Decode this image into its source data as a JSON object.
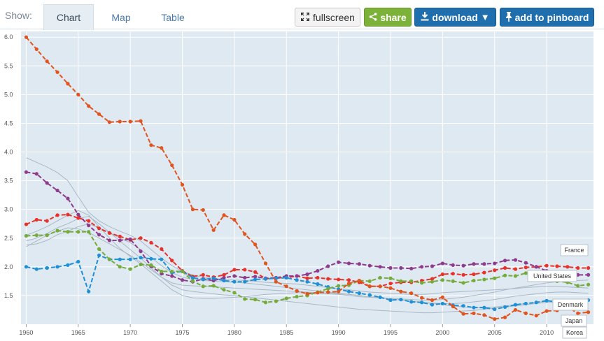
{
  "toolbar": {
    "show_label": "Show:",
    "tabs": [
      {
        "label": "Chart",
        "active": true
      },
      {
        "label": "Map",
        "active": false
      },
      {
        "label": "Table",
        "active": false
      }
    ],
    "fullscreen_label": "fullscreen",
    "share_label": "share",
    "download_label": "download",
    "pinboard_label": "add to pinboard",
    "icons": {
      "fullscreen": "fullscreen-icon",
      "share": "share-icon",
      "download": "download-icon",
      "dropdown": "caret-down-icon",
      "pin": "pin-icon"
    },
    "colors": {
      "share": "#7db23a",
      "download": "#1f6fae",
      "pinboard": "#1f6fae"
    }
  },
  "chart_data": {
    "type": "line",
    "title": "",
    "xlabel": "",
    "ylabel": "",
    "xlim": [
      1959.5,
      2014.5
    ],
    "ylim": [
      1.0,
      6.1
    ],
    "xticks": [
      1960,
      1965,
      1970,
      1975,
      1980,
      1985,
      1990,
      1995,
      2000,
      2005,
      2010
    ],
    "yticks": [
      1.5,
      2.0,
      2.5,
      3.0,
      3.5,
      4.0,
      4.5,
      5.0,
      5.5,
      6.0
    ],
    "ytick_labels": [
      "1.5",
      "2.0",
      "2.5",
      "3.0",
      "3.5",
      "4.0",
      "4.5",
      "5.0",
      "5.5",
      "6.0"
    ],
    "grid": true,
    "background": "#dfe9f1",
    "highlighted_series": [
      {
        "name": "France",
        "color": "#e8312b",
        "x_start": 1960,
        "values": [
          2.74,
          2.82,
          2.8,
          2.9,
          2.91,
          2.85,
          2.8,
          2.67,
          2.59,
          2.53,
          2.47,
          2.5,
          2.42,
          2.31,
          2.11,
          1.93,
          1.83,
          1.86,
          1.82,
          1.86,
          1.95,
          1.95,
          1.91,
          1.79,
          1.81,
          1.81,
          1.84,
          1.8,
          1.81,
          1.79,
          1.78,
          1.77,
          1.73,
          1.66,
          1.66,
          1.71,
          1.73,
          1.73,
          1.76,
          1.79,
          1.87,
          1.88,
          1.86,
          1.87,
          1.9,
          1.94,
          1.98,
          1.96,
          1.99,
          2.0,
          2.02,
          2.01,
          2.0,
          1.98,
          1.98
        ]
      },
      {
        "name": "United States",
        "color": "#8e3b8c",
        "x_start": 1960,
        "values": [
          3.65,
          3.62,
          3.46,
          3.33,
          3.19,
          2.91,
          2.72,
          2.56,
          2.46,
          2.46,
          2.48,
          2.27,
          2.01,
          1.88,
          1.84,
          1.77,
          1.74,
          1.79,
          1.76,
          1.81,
          1.84,
          1.81,
          1.83,
          1.8,
          1.81,
          1.84,
          1.84,
          1.87,
          1.93,
          2.01,
          2.08,
          2.06,
          2.05,
          2.02,
          2.0,
          1.98,
          1.98,
          1.97,
          2.0,
          2.01,
          2.06,
          2.03,
          2.02,
          2.05,
          2.05,
          2.06,
          2.11,
          2.12,
          2.07,
          2.0,
          1.93,
          1.89,
          1.88,
          1.86,
          1.86
        ]
      },
      {
        "name": "Denmark",
        "color": "#1e90d6",
        "x_start": 1960,
        "values": [
          2.0,
          1.96,
          1.98,
          2.0,
          2.03,
          2.09,
          1.57,
          2.2,
          2.13,
          2.13,
          2.13,
          2.16,
          2.14,
          2.13,
          1.9,
          1.92,
          1.81,
          1.78,
          1.8,
          1.76,
          1.74,
          1.74,
          1.78,
          1.79,
          1.8,
          1.81,
          1.77,
          1.74,
          1.7,
          1.65,
          1.61,
          1.57,
          1.54,
          1.51,
          1.47,
          1.42,
          1.43,
          1.39,
          1.38,
          1.34,
          1.36,
          1.33,
          1.32,
          1.29,
          1.29,
          1.26,
          1.3,
          1.34,
          1.36,
          1.38,
          1.41,
          1.39,
          1.37,
          1.41,
          1.42
        ]
      },
      {
        "name": "Japan",
        "color": "#75ab3a",
        "x_start": 1960,
        "values": [
          2.54,
          2.55,
          2.55,
          2.63,
          2.61,
          2.61,
          2.61,
          2.31,
          2.13,
          2.0,
          1.96,
          2.04,
          2.03,
          1.92,
          1.92,
          1.92,
          1.75,
          1.66,
          1.67,
          1.6,
          1.55,
          1.44,
          1.43,
          1.38,
          1.4,
          1.45,
          1.48,
          1.5,
          1.56,
          1.62,
          1.67,
          1.68,
          1.76,
          1.75,
          1.81,
          1.8,
          1.75,
          1.75,
          1.72,
          1.74,
          1.77,
          1.75,
          1.72,
          1.76,
          1.78,
          1.8,
          1.85,
          1.84,
          1.89,
          1.84,
          1.87,
          1.75,
          1.73,
          1.67,
          1.69
        ]
      },
      {
        "name": "Korea",
        "color": "#e0551f",
        "x_start": 1960,
        "values": [
          6.0,
          5.79,
          5.58,
          5.39,
          5.19,
          5.0,
          4.8,
          4.66,
          4.52,
          4.53,
          4.53,
          4.54,
          4.12,
          4.07,
          3.77,
          3.43,
          3.0,
          2.99,
          2.64,
          2.9,
          2.82,
          2.57,
          2.39,
          2.06,
          1.74,
          1.66,
          1.58,
          1.53,
          1.55,
          1.56,
          1.57,
          1.71,
          1.76,
          1.66,
          1.66,
          1.63,
          1.57,
          1.54,
          1.46,
          1.42,
          1.47,
          1.31,
          1.18,
          1.19,
          1.16,
          1.09,
          1.12,
          1.25,
          1.19,
          1.15,
          1.23,
          1.24,
          1.3,
          1.19,
          1.21
        ]
      }
    ],
    "background_series": [
      {
        "color": "#a9b8c6",
        "x_start": 1960,
        "values": [
          3.9,
          3.82,
          3.74,
          3.64,
          3.5,
          3.22,
          2.95,
          2.8,
          2.7,
          2.62,
          2.55,
          2.45,
          2.3,
          2.15,
          2.02,
          1.92,
          1.86,
          1.82,
          1.8,
          1.78,
          1.77,
          1.76,
          1.75,
          1.73,
          1.72,
          1.71,
          1.7,
          1.68,
          1.66,
          1.64,
          1.62,
          1.6,
          1.58,
          1.56,
          1.55,
          1.54,
          1.53,
          1.52,
          1.52,
          1.53,
          1.55,
          1.56,
          1.57,
          1.58,
          1.59,
          1.6,
          1.61,
          1.62,
          1.64,
          1.65,
          1.66,
          1.66,
          1.65,
          1.64,
          1.63
        ]
      },
      {
        "color": "#a9b8c6",
        "x_start": 1960,
        "values": [
          2.38,
          2.4,
          2.46,
          2.56,
          2.62,
          2.7,
          2.75,
          2.68,
          2.6,
          2.5,
          2.42,
          2.3,
          2.16,
          2.02,
          1.9,
          1.82,
          1.78,
          1.76,
          1.75,
          1.74,
          1.73,
          1.72,
          1.7,
          1.68,
          1.66,
          1.64,
          1.62,
          1.6,
          1.58,
          1.56,
          1.54,
          1.52,
          1.5,
          1.48,
          1.46,
          1.44,
          1.42,
          1.4,
          1.38,
          1.37,
          1.36,
          1.36,
          1.37,
          1.39,
          1.41,
          1.43,
          1.46,
          1.49,
          1.51,
          1.53,
          1.55,
          1.56,
          1.56,
          1.55,
          1.54
        ]
      },
      {
        "color": "#a9b8c6",
        "x_start": 1960,
        "values": [
          2.45,
          2.5,
          2.58,
          2.68,
          2.75,
          2.84,
          2.88,
          2.75,
          2.6,
          2.45,
          2.3,
          2.15,
          1.98,
          1.82,
          1.68,
          1.6,
          1.57,
          1.55,
          1.53,
          1.51,
          1.5,
          1.48,
          1.46,
          1.44,
          1.42,
          1.4,
          1.38,
          1.36,
          1.34,
          1.32,
          1.3,
          1.28,
          1.26,
          1.25,
          1.24,
          1.23,
          1.22,
          1.21,
          1.2,
          1.2,
          1.21,
          1.22,
          1.23,
          1.24,
          1.26,
          1.28,
          1.3,
          1.32,
          1.34,
          1.36,
          1.38,
          1.38,
          1.38,
          1.37,
          1.36
        ]
      },
      {
        "color": "#a9b8c6",
        "x_start": 1960,
        "values": [
          2.55,
          2.62,
          2.7,
          2.8,
          2.9,
          2.98,
          2.9,
          2.7,
          2.5,
          2.32,
          2.18,
          2.05,
          1.9,
          1.75,
          1.6,
          1.5,
          1.46,
          1.45,
          1.45,
          1.46,
          1.47,
          1.48,
          1.5,
          1.52,
          1.53,
          1.54,
          1.55,
          1.55,
          1.54,
          1.53,
          1.52,
          1.5,
          1.48,
          1.47,
          1.46,
          1.45,
          1.44,
          1.43,
          1.42,
          1.42,
          1.43,
          1.45,
          1.47,
          1.5,
          1.53,
          1.56,
          1.6,
          1.63,
          1.66,
          1.69,
          1.72,
          1.74,
          1.75,
          1.76,
          1.77
        ]
      },
      {
        "color": "#a9b8c6",
        "x_start": 1960,
        "values": [
          2.35,
          2.45,
          2.55,
          2.62,
          2.68,
          2.66,
          2.6,
          2.5,
          2.4,
          2.3,
          2.2,
          2.08,
          1.95,
          1.82,
          1.72,
          1.68,
          1.67,
          1.66,
          1.65,
          1.64,
          1.63,
          1.62,
          1.61,
          1.6,
          1.59,
          1.58,
          1.57,
          1.56,
          1.55,
          1.54,
          1.53,
          1.52,
          1.5,
          1.48,
          1.46,
          1.44,
          1.42,
          1.4,
          1.38,
          1.36,
          1.34,
          1.32,
          1.3,
          1.29,
          1.29,
          1.3,
          1.32,
          1.34,
          1.36,
          1.38,
          1.4,
          1.41,
          1.42,
          1.42,
          1.42
        ]
      }
    ],
    "series_labels": [
      "France",
      "United States",
      "Denmark",
      "Japan",
      "Korea"
    ]
  }
}
